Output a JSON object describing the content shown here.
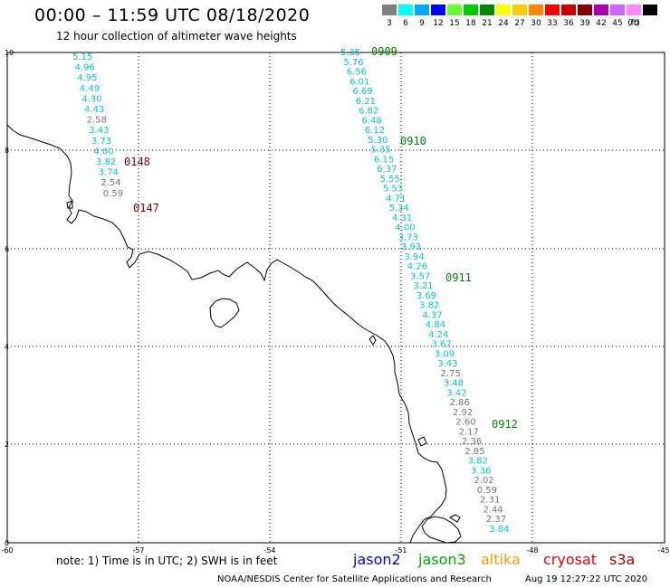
{
  "header": {
    "title": "00:00 – 11:59 UTC 08/18/2020",
    "subtitle": "12 hour collection of altimeter wave heights"
  },
  "legend": {
    "unit": "(ft)",
    "bins": [
      {
        "label": "3",
        "color": "#808080"
      },
      {
        "label": "6",
        "color": "#00ffff"
      },
      {
        "label": "9",
        "color": "#00aaff"
      },
      {
        "label": "12",
        "color": "#0000ff"
      },
      {
        "label": "15",
        "color": "#66ff33"
      },
      {
        "label": "18",
        "color": "#00cc00"
      },
      {
        "label": "21",
        "color": "#008800"
      },
      {
        "label": "24",
        "color": "#ffff00"
      },
      {
        "label": "27",
        "color": "#ffcc00"
      },
      {
        "label": "30",
        "color": "#ff8800"
      },
      {
        "label": "33",
        "color": "#ff0000"
      },
      {
        "label": "36",
        "color": "#cc0000"
      },
      {
        "label": "39",
        "color": "#880000"
      },
      {
        "label": "42",
        "color": "#aa00aa"
      },
      {
        "label": "45",
        "color": "#cc66ff"
      },
      {
        "label": "70",
        "color": "#ff88ff"
      },
      {
        "label": "",
        "color": "#000000"
      }
    ]
  },
  "axes": {
    "x_ticks": [
      "-60",
      "-57",
      "-54",
      "-51",
      "-48",
      "-45"
    ],
    "y_ticks": [
      "10",
      "8",
      "6",
      "4",
      "2",
      "0"
    ]
  },
  "tracks": {
    "left": [
      {
        "v": "5.15",
        "c": "#00cccc"
      },
      {
        "v": "4.96",
        "c": "#00cccc"
      },
      {
        "v": "4.95",
        "c": "#00cccc"
      },
      {
        "v": "4.49",
        "c": "#00cccc"
      },
      {
        "v": "4.30",
        "c": "#00cccc"
      },
      {
        "v": "4.43",
        "c": "#00cccc"
      },
      {
        "v": "2.58",
        "c": "#777777"
      },
      {
        "v": "3.43",
        "c": "#00cccc"
      },
      {
        "v": "3.73",
        "c": "#00cccc"
      },
      {
        "v": "4.00",
        "c": "#00cccc"
      },
      {
        "v": "3.82",
        "c": "#00cccc"
      },
      {
        "v": "3.74",
        "c": "#00cccc"
      },
      {
        "v": "2.54",
        "c": "#777777"
      },
      {
        "v": "0.59",
        "c": "#777777"
      }
    ],
    "right": [
      {
        "v": "5.35",
        "c": "#00cccc"
      },
      {
        "v": "5.76",
        "c": "#00cccc"
      },
      {
        "v": "6.56",
        "c": "#00cccc"
      },
      {
        "v": "6.01",
        "c": "#00cccc"
      },
      {
        "v": "6.69",
        "c": "#00cccc"
      },
      {
        "v": "6.21",
        "c": "#00cccc"
      },
      {
        "v": "6.82",
        "c": "#00cccc"
      },
      {
        "v": "6.48",
        "c": "#00cccc"
      },
      {
        "v": "6.12",
        "c": "#00cccc"
      },
      {
        "v": "5.30",
        "c": "#00cccc"
      },
      {
        "v": "5.35",
        "c": "#00cccc"
      },
      {
        "v": "6.15",
        "c": "#00cccc"
      },
      {
        "v": "6.37",
        "c": "#00cccc"
      },
      {
        "v": "5.55",
        "c": "#00cccc"
      },
      {
        "v": "5.53",
        "c": "#00cccc"
      },
      {
        "v": "4.71",
        "c": "#00cccc"
      },
      {
        "v": "5.34",
        "c": "#00cccc"
      },
      {
        "v": "4.31",
        "c": "#00cccc"
      },
      {
        "v": "4.00",
        "c": "#00cccc"
      },
      {
        "v": "3.73",
        "c": "#00cccc"
      },
      {
        "v": "3.93",
        "c": "#00cccc"
      },
      {
        "v": "3.94",
        "c": "#00cccc"
      },
      {
        "v": "4.26",
        "c": "#00cccc"
      },
      {
        "v": "3.57",
        "c": "#00cccc"
      },
      {
        "v": "3.21",
        "c": "#00cccc"
      },
      {
        "v": "3.69",
        "c": "#00cccc"
      },
      {
        "v": "3.82",
        "c": "#00cccc"
      },
      {
        "v": "4.37",
        "c": "#00cccc"
      },
      {
        "v": "4.84",
        "c": "#00cccc"
      },
      {
        "v": "4.24",
        "c": "#00cccc"
      },
      {
        "v": "3.67",
        "c": "#00cccc"
      },
      {
        "v": "3.09",
        "c": "#00cccc"
      },
      {
        "v": "3.43",
        "c": "#00cccc"
      },
      {
        "v": "2.75",
        "c": "#777777"
      },
      {
        "v": "3.48",
        "c": "#00cccc"
      },
      {
        "v": "3.42",
        "c": "#00cccc"
      },
      {
        "v": "2.86",
        "c": "#777777"
      },
      {
        "v": "2.92",
        "c": "#777777"
      },
      {
        "v": "2.60",
        "c": "#777777"
      },
      {
        "v": "2.17",
        "c": "#777777"
      },
      {
        "v": "2.36",
        "c": "#777777"
      },
      {
        "v": "2.85",
        "c": "#777777"
      },
      {
        "v": "3.82",
        "c": "#00cccc"
      },
      {
        "v": "3.36",
        "c": "#00cccc"
      },
      {
        "v": "2.02",
        "c": "#777777"
      },
      {
        "v": "0.59",
        "c": "#777777"
      },
      {
        "v": "2.31",
        "c": "#777777"
      },
      {
        "v": "2.44",
        "c": "#777777"
      },
      {
        "v": "2.37",
        "c": "#777777"
      },
      {
        "v": "3.84",
        "c": "#00cccc"
      }
    ]
  },
  "pass_times": {
    "t0148": {
      "text": "0148",
      "color": "#880000"
    },
    "t0147": {
      "text": "0147",
      "color": "#880000"
    },
    "t0909": {
      "text": "0909",
      "color": "#008800"
    },
    "t0910": {
      "text": "0910",
      "color": "#008800"
    },
    "t0911": {
      "text": "0911",
      "color": "#008800"
    },
    "t0912": {
      "text": "0912",
      "color": "#008800"
    }
  },
  "note": "note:  1) Time is in UTC;  2) SWH is in feet",
  "satellites": [
    {
      "name": "jason2",
      "color": "#0000ee"
    },
    {
      "name": "jason3",
      "color": "#00aa00"
    },
    {
      "name": "altika",
      "color": "#ff9900"
    },
    {
      "name": "cryosat",
      "color": "#ee0000"
    },
    {
      "name": "s3a",
      "color": "#aa0000"
    }
  ],
  "footer": {
    "credit": "NOAA/NESDIS Center for Satellite Applications and Research",
    "generated": "Aug 19 12:27:22 UTC 2020"
  }
}
